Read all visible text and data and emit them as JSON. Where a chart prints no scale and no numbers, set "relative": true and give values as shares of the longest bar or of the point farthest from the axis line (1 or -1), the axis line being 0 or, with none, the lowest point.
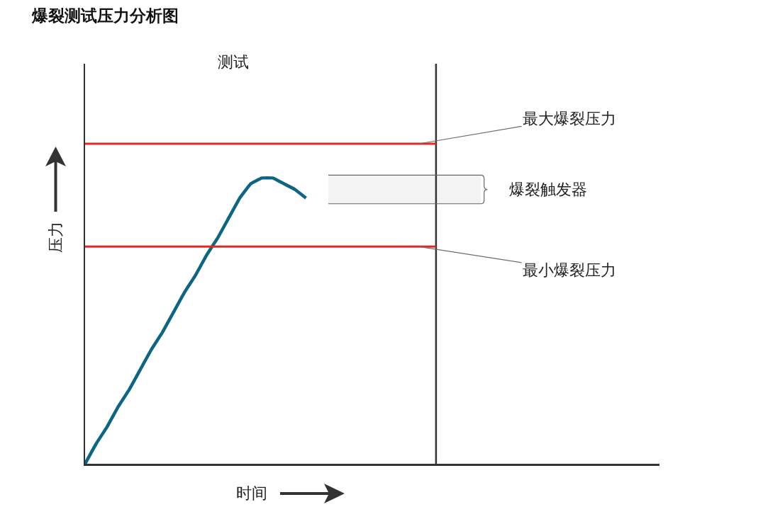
{
  "chart_data": {
    "type": "line",
    "title": "爆裂测试压力分析图",
    "xlabel": "时间",
    "ylabel": "压力",
    "relative": true,
    "categories": [
      null,
      null,
      null,
      null,
      null,
      null,
      null,
      null,
      null,
      null,
      null,
      null,
      null,
      null,
      null,
      null,
      null,
      null,
      null,
      null,
      null,
      null,
      null,
      null,
      null,
      null,
      null,
      null,
      null,
      null,
      null,
      null,
      null,
      null,
      null,
      null,
      null,
      null,
      null,
      null,
      null,
      null,
      null,
      null,
      null,
      null,
      null,
      null,
      null,
      null,
      null,
      null,
      null
    ],
    "values": [
      0,
      0.07,
      0.13,
      0.2,
      0.26,
      0.33,
      0.4,
      0.46,
      0.53,
      0.6,
      0.66,
      0.73,
      0.79,
      0.86,
      0.93,
      0.98,
      1,
      1,
      0.98,
      0.96,
      0.93,
      null,
      null,
      null,
      null,
      null,
      null,
      null,
      null,
      null,
      null,
      null,
      null,
      null,
      null,
      null,
      null,
      null,
      null,
      null,
      null,
      null,
      null,
      null,
      null,
      null,
      null,
      null,
      null,
      null,
      null,
      null,
      null
    ],
    "color": "#0b6583",
    "ref_lines": [
      {
        "axis": "y",
        "value": 1.12,
        "label": "最大爆裂压力",
        "color": "#e32626"
      },
      {
        "axis": "y",
        "value": 0.76,
        "label": "最小爆裂压力",
        "color": "#e32626"
      }
    ],
    "bands": [
      {
        "axis": "y",
        "from": 0.91,
        "to": 1.01,
        "label": "爆裂触发器",
        "color": "#666666"
      }
    ],
    "annotations": [
      "测试"
    ]
  }
}
